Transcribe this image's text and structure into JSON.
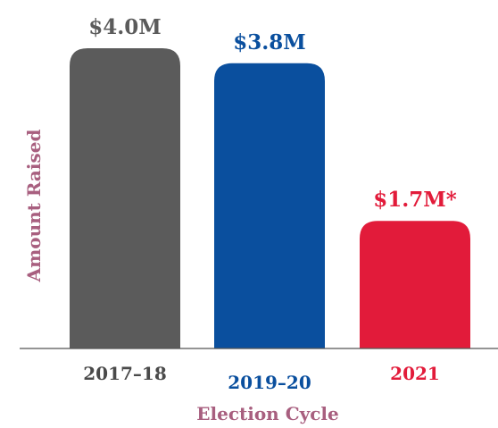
{
  "chart_data": {
    "type": "bar",
    "title": "",
    "xlabel": "Election Cycle",
    "ylabel": "Amount Raised",
    "categories": [
      "2017–18",
      "2019–20",
      "2021"
    ],
    "values": [
      4.0,
      3.8,
      1.7
    ],
    "value_labels": [
      "$4.0M",
      "$3.8M",
      "$1.7M*"
    ],
    "units": "$M",
    "ylim": [
      0,
      4.0
    ],
    "grid": false,
    "legend": "none",
    "colors": [
      "#5b5b5b",
      "#0a4f9e",
      "#e21b3a"
    ],
    "label_color": "#a85f7f",
    "axis_color": "#555555",
    "category_label_colors": [
      "#4a4a4a",
      "#0a4f9e",
      "#e21b3a"
    ]
  }
}
